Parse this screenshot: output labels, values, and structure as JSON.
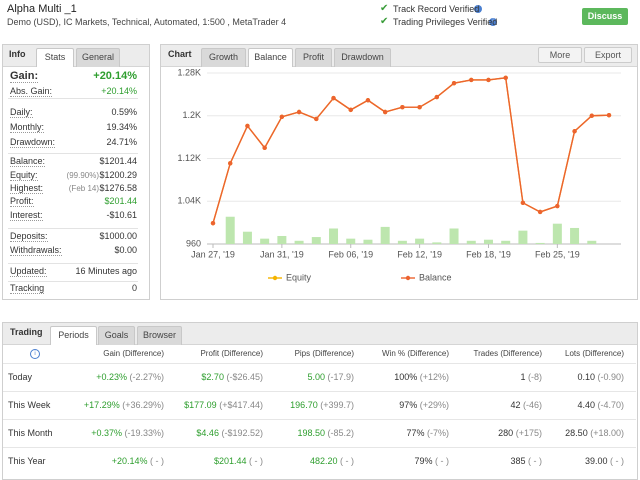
{
  "header": {
    "title": "Alpha Multi _1",
    "subtitle": "Demo (USD), IC Markets, Technical, Automated, 1:500 , MetaTrader 4",
    "verifications": [
      "Track Record Verified",
      "Trading Privileges Verified"
    ],
    "button": "Discuss"
  },
  "info_panel": {
    "tabs": [
      "Info",
      "Stats",
      "General"
    ],
    "rows": [
      {
        "label": "Gain:",
        "value": "+20.14%"
      },
      {
        "label": "Abs. Gain:",
        "value": "+20.14%"
      },
      {
        "label": "Daily:",
        "value": "0.59%"
      },
      {
        "label": "Monthly:",
        "value": "19.34%"
      },
      {
        "label": "Drawdown:",
        "value": "24.71%"
      },
      {
        "label": "Balance:",
        "value": "$1201.44"
      },
      {
        "label": "Equity:",
        "note": "(99.90%)",
        "value": "$1200.29"
      },
      {
        "label": "Highest:",
        "note": "(Feb 14)",
        "value": "$1276.58"
      },
      {
        "label": "Profit:",
        "value": "$201.44"
      },
      {
        "label": "Interest:",
        "value": "-$10.61"
      },
      {
        "label": "Deposits:",
        "value": "$1000.00"
      },
      {
        "label": "Withdrawals:",
        "value": "$0.00"
      },
      {
        "label": "Updated:",
        "value": "16 Minutes ago"
      },
      {
        "label": "Tracking",
        "value": "0"
      }
    ]
  },
  "chart_panel": {
    "tabs": [
      "Chart",
      "Growth",
      "Balance",
      "Profit",
      "Drawdown"
    ],
    "buttons": [
      "More",
      "Export"
    ],
    "chart": {
      "type": "line",
      "categories": [
        "Jan 27, '19",
        null,
        null,
        null,
        "Jan 31, '19",
        null,
        null,
        null,
        "Feb 06, '19",
        null,
        null,
        null,
        "Feb 12, '19",
        null,
        null,
        null,
        "Feb 18, '19",
        null,
        null,
        null,
        "Feb 25, '19",
        null,
        null,
        null
      ],
      "ylim": [
        960,
        1280
      ],
      "yticks": [
        960,
        {
          "value": 1040,
          "label": "1.04K"
        },
        {
          "value": 1120,
          "label": "1.12K"
        },
        {
          "value": 1200,
          "label": "1.2K"
        },
        {
          "value": 1280,
          "label": "1.28K"
        }
      ],
      "grid": true,
      "series": [
        {
          "name": "Equity",
          "color": "#f5b400",
          "values": [
            999,
            1111,
            1181,
            1140,
            1198,
            1207,
            1194,
            1233,
            1211,
            1229,
            1207,
            1216,
            1216,
            1235,
            1261,
            1267,
            1267,
            1271,
            1037,
            1020,
            1031,
            1171,
            1200,
            1201
          ]
        },
        {
          "name": "Balance",
          "color": "#ec6330",
          "values": [
            999,
            1111,
            1181,
            1140,
            1198,
            1207,
            1194,
            1233,
            1211,
            1229,
            1207,
            1216,
            1216,
            1235,
            1261,
            1267,
            1267,
            1271,
            1037,
            1020,
            1031,
            1171,
            1200,
            1201
          ]
        },
        {
          "type": "bar",
          "color": "#bde6ae",
          "values": [
            null,
            1011,
            983,
            970,
            975,
            966,
            973,
            989,
            970,
            968,
            992,
            966,
            970,
            963,
            989,
            966,
            968,
            966,
            985,
            962,
            998,
            990,
            966,
            null
          ]
        }
      ]
    }
  },
  "trading_panel": {
    "tabs": [
      "Trading",
      "Periods",
      "Goals",
      "Browser"
    ],
    "columns": [
      "Gain (Difference)",
      "Profit (Difference)",
      "Pips (Difference)",
      "Win % (Difference)",
      "Trades (Difference)",
      "Lots (Difference)"
    ],
    "rows": [
      {
        "label": "Today",
        "cells": [
          [
            "+0.23%",
            "(-2.27%)"
          ],
          [
            "$2.70",
            "(-$26.45)"
          ],
          [
            "5.00",
            "(-17.9)"
          ],
          [
            "100%",
            "(+12%)"
          ],
          [
            "1",
            "(-8)"
          ],
          [
            "0.10",
            "(-0.90)"
          ]
        ]
      },
      {
        "label": "This Week",
        "cells": [
          [
            "+17.29%",
            "(+36.29%)"
          ],
          [
            "$177.09",
            "(+$417.44)"
          ],
          [
            "196.70",
            "(+399.7)"
          ],
          [
            "97%",
            "(+29%)"
          ],
          [
            "42",
            "(-46)"
          ],
          [
            "4.40",
            "(-4.70)"
          ]
        ]
      },
      {
        "label": "This Month",
        "cells": [
          [
            "+0.37%",
            "(-19.33%)"
          ],
          [
            "$4.46",
            "(-$192.52)"
          ],
          [
            "198.50",
            "(-85.2)"
          ],
          [
            "77%",
            "(-7%)"
          ],
          [
            "280",
            "(+175)"
          ],
          [
            "28.50",
            "(+18.00)"
          ]
        ]
      },
      {
        "label": "This Year",
        "cells": [
          [
            "+20.14%",
            "( - )"
          ],
          [
            "$201.44",
            "( - )"
          ],
          [
            "482.20",
            "( - )"
          ],
          [
            "79%",
            "( - )"
          ],
          [
            "385",
            "( - )"
          ],
          [
            "39.00",
            "( - )"
          ]
        ]
      }
    ]
  }
}
